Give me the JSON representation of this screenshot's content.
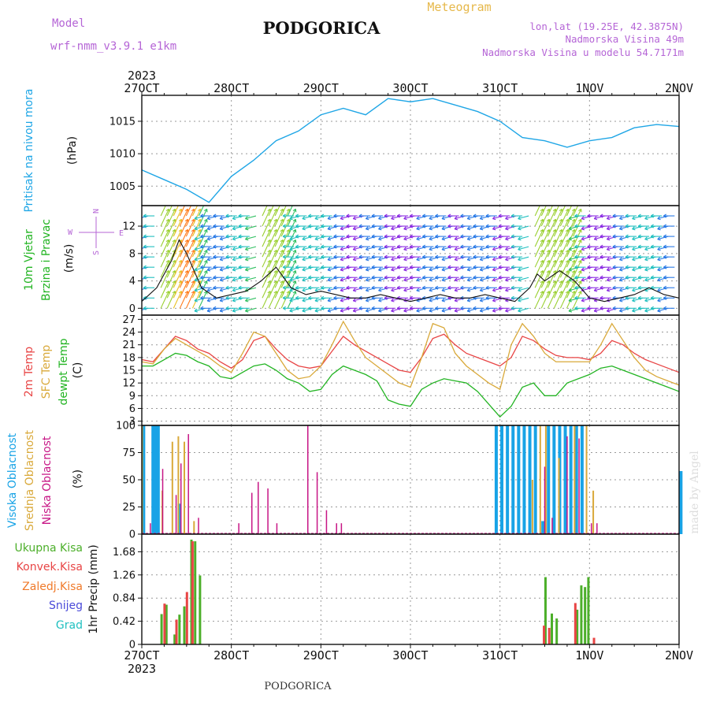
{
  "header": {
    "model_label": "Model",
    "model_name": "wrf-nmm_v3.9.1 e1km",
    "title": "PODGORICA",
    "meteogram_label": "Meteogram",
    "coords": "lon,lat (19.25E, 42.3875N)",
    "elevation": "Nadmorska Visina 49m",
    "model_elevation": "Nadmorska Visina u modelu 54.7171m",
    "year_top": "2023",
    "year_bottom": "2023",
    "footer_title": "PODGORICA",
    "watermark": "made by Angel"
  },
  "colors": {
    "pressure": "#1fa6e6",
    "temp2m": "#e84545",
    "sfc": "#d9a93a",
    "dewpt": "#22b422",
    "high_cloud": "#18a3e6",
    "mid_cloud": "#d9a93a",
    "low_cloud": "#c71585",
    "total_precip": "#4caf2a",
    "conv_precip": "#e84545",
    "frozen_precip": "#f07a2a",
    "snow": "#4a4ad9",
    "hail": "#20c0c0",
    "wind_label": "#22b422",
    "purple": "#b565d6",
    "gold": "#e6b84a"
  },
  "axis_x": {
    "ticks": [
      "27OCT",
      "28OCT",
      "29OCT",
      "30OCT",
      "31OCT",
      "1NOV",
      "2NOV"
    ]
  },
  "panel_pressure": {
    "label": "Pritisak na nivou mora",
    "unit": "(hPa)",
    "yticks": [
      1005,
      1010,
      1015
    ]
  },
  "panel_wind": {
    "label1": "10m Vjetar",
    "label2": "Brzina i Pravac",
    "unit": "(m/s)",
    "compass_n": "N",
    "compass_s": "S",
    "compass_e": "E",
    "compass_w": "W",
    "yticks": [
      0,
      4,
      8,
      12
    ]
  },
  "panel_temp": {
    "label1": "2m Temp",
    "label2": "SFC Temp",
    "label3": "dewpt Temp",
    "unit": "(C)",
    "yticks": [
      3,
      6,
      9,
      12,
      15,
      18,
      21,
      24,
      27
    ]
  },
  "panel_cloud": {
    "label1": "Visoka Oblacnost",
    "label2": "Srednja Oblacnost",
    "label3": "Niska Oblacnost",
    "unit": "(%)",
    "yticks": [
      0,
      25,
      50,
      75,
      100
    ]
  },
  "panel_precip": {
    "legend": [
      "Ukupna Kisa",
      "Konvek.Kisa",
      "Zaledj.Kisa",
      "Snijeg",
      "Grad"
    ],
    "unit": "1hr Precip (mm)",
    "yticks": [
      "0",
      "0.42",
      "0.84",
      "1.26",
      "1.68"
    ]
  },
  "chart_data": [
    {
      "type": "line",
      "name": "pressure",
      "x_hours": [
        0,
        6,
        12,
        18,
        24,
        30,
        36,
        42,
        48,
        54,
        60,
        66,
        72,
        78,
        84,
        90,
        96,
        102,
        108,
        114,
        120,
        126,
        132,
        138,
        144
      ],
      "values": [
        1007.5,
        1006,
        1004.5,
        1002.5,
        1006.5,
        1009,
        1012,
        1013.5,
        1016,
        1017,
        1016,
        1018.5,
        1018,
        1018.5,
        1017.5,
        1016.5,
        1015,
        1012.5,
        1012,
        1011,
        1012,
        1012.5,
        1014,
        1014.5,
        1014.2
      ],
      "ylim": [
        1002,
        1019
      ]
    },
    {
      "type": "line",
      "name": "temperature",
      "x_hours": [
        0,
        3,
        6,
        9,
        12,
        15,
        18,
        21,
        24,
        27,
        30,
        33,
        36,
        39,
        42,
        45,
        48,
        51,
        54,
        57,
        60,
        63,
        66,
        69,
        72,
        75,
        78,
        81,
        84,
        87,
        90,
        93,
        96,
        99,
        102,
        105,
        108,
        111,
        114,
        117,
        120,
        123,
        126,
        129,
        132,
        135,
        138,
        141,
        144
      ],
      "series": [
        {
          "name": "2m Temp",
          "values": [
            17.5,
            17,
            20,
            23,
            22,
            20,
            19,
            17,
            15.5,
            17.5,
            22,
            23,
            20,
            17.5,
            16,
            15.5,
            16,
            19.5,
            23,
            21,
            19.5,
            18,
            16.5,
            15,
            14.5,
            18,
            22.5,
            23.5,
            21,
            19,
            18,
            17,
            16,
            18,
            23,
            22,
            20,
            18.5,
            18,
            18,
            17.5,
            19,
            22,
            21,
            19,
            17.5,
            16.5,
            15.5,
            14.5
          ]
        },
        {
          "name": "SFC Temp",
          "values": [
            17,
            16.5,
            20,
            22.5,
            21,
            19.5,
            18,
            16,
            14.5,
            19,
            24,
            23,
            19,
            15,
            13,
            13.5,
            16,
            21,
            26.5,
            22,
            18,
            16,
            14,
            12,
            11,
            18,
            26,
            25,
            19,
            16,
            14,
            12,
            10.5,
            21,
            26,
            23,
            19,
            17,
            17,
            17,
            17,
            21,
            26,
            22,
            18,
            15,
            13.5,
            12.5,
            11.5
          ]
        },
        {
          "name": "dewpt Temp",
          "values": [
            16,
            16,
            17.5,
            19,
            18.5,
            17,
            16,
            13.5,
            13,
            14.5,
            16,
            16.5,
            15,
            13,
            12,
            10,
            10.5,
            14,
            16,
            15,
            14,
            12.5,
            8,
            7,
            6.5,
            10.5,
            12,
            13,
            12.5,
            12,
            10,
            7,
            4,
            6.5,
            11,
            12,
            9,
            9,
            12,
            13,
            14,
            15.5,
            16,
            15,
            14,
            13,
            12,
            11,
            10
          ]
        }
      ],
      "ylim": [
        2,
        28
      ]
    },
    {
      "type": "line",
      "name": "wind_speed",
      "x_hours": [
        0,
        4,
        8,
        10,
        12,
        16,
        20,
        24,
        28,
        32,
        36,
        40,
        44,
        48,
        52,
        56,
        60,
        64,
        68,
        72,
        76,
        80,
        84,
        88,
        92,
        96,
        100,
        104,
        106,
        108,
        112,
        116,
        120,
        124,
        128,
        132,
        136,
        140,
        144
      ],
      "values": [
        1,
        3,
        7,
        10,
        8,
        3,
        1.5,
        2,
        2.5,
        4,
        6,
        3,
        2,
        2.5,
        2,
        1.5,
        1.5,
        2,
        1.5,
        1,
        1.5,
        2,
        1.5,
        1.5,
        2,
        1.5,
        1,
        3,
        5,
        4,
        5.5,
        4,
        1.5,
        1,
        1.5,
        2,
        3,
        2,
        1.5
      ],
      "ylim": [
        -1,
        15
      ]
    },
    {
      "type": "bar",
      "name": "cloud_cover",
      "ylim": [
        0,
        100
      ],
      "series": [
        {
          "name": "Visoka Oblacnost",
          "x_hours": [
            0.5,
            3,
            3.7,
            4.4,
            10,
            95,
            96.5,
            98,
            99.5,
            101,
            102.5,
            104,
            105.5,
            107.5,
            109,
            110.5,
            112,
            113.5,
            115,
            116.5,
            118,
            144.5
          ],
          "values": [
            100,
            100,
            100,
            100,
            28,
            100,
            100,
            100,
            100,
            100,
            100,
            100,
            100,
            12,
            100,
            100,
            100,
            100,
            100,
            100,
            100,
            58
          ]
        },
        {
          "name": "Srednja Oblacnost",
          "x_hours": [
            0.1,
            5.5,
            8.2,
            9.8,
            11.4,
            14,
            104.7,
            106.8,
            108.3,
            111.8,
            116,
            119.2,
            121
          ],
          "values": [
            100,
            40,
            85,
            90,
            85,
            12,
            50,
            100,
            100,
            70,
            100,
            100,
            40
          ]
        },
        {
          "name": "Niska Oblacnost",
          "x_hours": [
            2.3,
            5.6,
            9.2,
            10.5,
            12.5,
            15.2,
            26,
            29.5,
            31.2,
            33.8,
            36.2,
            44.5,
            47,
            49.5,
            52.2,
            53.5,
            108,
            110,
            114,
            117.2,
            120.5,
            122
          ],
          "values": [
            10,
            60,
            36,
            65,
            92,
            15,
            10,
            38,
            48,
            42,
            10,
            100,
            57,
            22,
            10,
            10,
            62,
            15,
            90,
            88,
            10,
            10
          ]
        }
      ]
    },
    {
      "type": "bar",
      "name": "precipitation",
      "ylim": [
        0,
        2.0
      ],
      "series": [
        {
          "name": "Ukupna Kisa",
          "x_hours": [
            5.3,
            6.6,
            8.8,
            10.1,
            11.4,
            13.3,
            14.3,
            15.6,
            108.2,
            109.9,
            111.2,
            116.7,
            117.8,
            118.8,
            119.7
          ],
          "values": [
            0.55,
            0.72,
            0.18,
            0.54,
            0.69,
            1.9,
            1.87,
            1.25,
            1.22,
            0.56,
            0.47,
            0.63,
            1.07,
            1.04,
            1.22
          ]
        },
        {
          "name": "Konvek.Kisa",
          "x_hours": [
            6.1,
            9.3,
            12.1,
            13.6,
            107.8,
            109.2,
            116.2,
            121.2
          ],
          "values": [
            0.74,
            0.45,
            0.95,
            1.87,
            0.34,
            0.3,
            0.75,
            0.12
          ]
        }
      ]
    }
  ]
}
